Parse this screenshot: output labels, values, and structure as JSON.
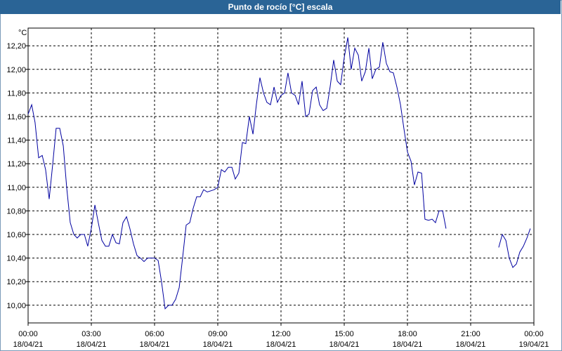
{
  "window": {
    "title": "Punto de rocío [°C] escala"
  },
  "colors": {
    "titlebar": "#2a6496",
    "line": "#0000a0",
    "grid": "#000000",
    "axis": "#000000"
  },
  "chart_data": {
    "type": "line",
    "title": "Punto de rocío [°C] escala",
    "ylabel": "°C",
    "xlabel": "",
    "grid": true,
    "ylim": [
      9.85,
      12.35
    ],
    "xlim": [
      0,
      24
    ],
    "x_unit": "hours since 18/04/21 00:00",
    "y_ticks": [
      "10,00",
      "10,20",
      "10,40",
      "10,60",
      "10,80",
      "11,00",
      "11,20",
      "11,40",
      "11,60",
      "11,80",
      "12,00",
      "12,20"
    ],
    "y_tick_values": [
      10.0,
      10.2,
      10.4,
      10.6,
      10.8,
      11.0,
      11.2,
      11.4,
      11.6,
      11.8,
      12.0,
      12.2
    ],
    "x_ticks": [
      {
        "time": "00:00",
        "date": "18/04/21"
      },
      {
        "time": "03:00",
        "date": "18/04/21"
      },
      {
        "time": "06:00",
        "date": "18/04/21"
      },
      {
        "time": "09:00",
        "date": "18/04/21"
      },
      {
        "time": "12:00",
        "date": "18/04/21"
      },
      {
        "time": "15:00",
        "date": "18/04/21"
      },
      {
        "time": "18:00",
        "date": "18/04/21"
      },
      {
        "time": "21:00",
        "date": "18/04/21"
      },
      {
        "time": "00:00",
        "date": "19/04/21"
      }
    ],
    "x_tick_values": [
      0,
      3,
      6,
      9,
      12,
      15,
      18,
      21,
      24
    ],
    "series": [
      {
        "segments": [
          [
            [
              0.0,
              11.62
            ],
            [
              0.17,
              11.7
            ],
            [
              0.33,
              11.55
            ],
            [
              0.5,
              11.25
            ],
            [
              0.67,
              11.27
            ],
            [
              0.83,
              11.15
            ],
            [
              1.0,
              10.9
            ],
            [
              1.17,
              11.2
            ],
            [
              1.33,
              11.5
            ],
            [
              1.5,
              11.5
            ],
            [
              1.67,
              11.35
            ],
            [
              1.83,
              11.0
            ],
            [
              2.0,
              10.7
            ],
            [
              2.17,
              10.6
            ],
            [
              2.33,
              10.57
            ],
            [
              2.5,
              10.6
            ],
            [
              2.67,
              10.6
            ],
            [
              2.83,
              10.5
            ],
            [
              3.0,
              10.65
            ],
            [
              3.17,
              10.85
            ],
            [
              3.33,
              10.7
            ],
            [
              3.5,
              10.55
            ],
            [
              3.67,
              10.5
            ],
            [
              3.83,
              10.5
            ],
            [
              4.0,
              10.6
            ],
            [
              4.17,
              10.53
            ],
            [
              4.33,
              10.52
            ],
            [
              4.5,
              10.7
            ],
            [
              4.67,
              10.75
            ],
            [
              4.83,
              10.65
            ],
            [
              5.0,
              10.52
            ],
            [
              5.17,
              10.42
            ],
            [
              5.33,
              10.4
            ],
            [
              5.5,
              10.37
            ],
            [
              5.67,
              10.4
            ],
            [
              5.83,
              10.4
            ],
            [
              6.0,
              10.4
            ],
            [
              6.17,
              10.38
            ],
            [
              6.33,
              10.2
            ],
            [
              6.5,
              9.97
            ],
            [
              6.67,
              10.0
            ],
            [
              6.83,
              10.0
            ],
            [
              7.0,
              10.05
            ],
            [
              7.17,
              10.15
            ],
            [
              7.33,
              10.4
            ],
            [
              7.5,
              10.68
            ],
            [
              7.67,
              10.7
            ],
            [
              7.83,
              10.82
            ],
            [
              8.0,
              10.92
            ],
            [
              8.17,
              10.92
            ],
            [
              8.33,
              10.98
            ],
            [
              8.5,
              10.96
            ],
            [
              8.67,
              10.97
            ],
            [
              8.83,
              10.98
            ],
            [
              9.0,
              11.0
            ],
            [
              9.17,
              11.15
            ],
            [
              9.33,
              11.13
            ],
            [
              9.5,
              11.17
            ],
            [
              9.67,
              11.17
            ],
            [
              9.83,
              11.07
            ],
            [
              10.0,
              11.12
            ],
            [
              10.17,
              11.38
            ],
            [
              10.33,
              11.37
            ],
            [
              10.5,
              11.6
            ],
            [
              10.67,
              11.45
            ],
            [
              10.83,
              11.7
            ],
            [
              11.0,
              11.93
            ],
            [
              11.17,
              11.8
            ],
            [
              11.33,
              11.72
            ],
            [
              11.5,
              11.7
            ],
            [
              11.67,
              11.85
            ],
            [
              11.83,
              11.72
            ],
            [
              12.0,
              11.78
            ],
            [
              12.17,
              11.8
            ],
            [
              12.33,
              11.97
            ],
            [
              12.5,
              11.8
            ],
            [
              12.67,
              11.78
            ],
            [
              12.83,
              11.7
            ],
            [
              13.0,
              11.9
            ],
            [
              13.17,
              11.6
            ],
            [
              13.33,
              11.62
            ],
            [
              13.5,
              11.82
            ],
            [
              13.67,
              11.85
            ],
            [
              13.83,
              11.7
            ],
            [
              14.0,
              11.65
            ],
            [
              14.17,
              11.67
            ],
            [
              14.33,
              11.85
            ],
            [
              14.5,
              12.08
            ],
            [
              14.67,
              11.9
            ],
            [
              14.83,
              11.87
            ],
            [
              15.0,
              12.1
            ],
            [
              15.17,
              12.27
            ],
            [
              15.33,
              12.0
            ],
            [
              15.5,
              12.18
            ],
            [
              15.67,
              12.12
            ],
            [
              15.83,
              11.9
            ],
            [
              16.0,
              11.98
            ],
            [
              16.17,
              12.18
            ],
            [
              16.33,
              11.92
            ],
            [
              16.5,
              12.0
            ],
            [
              16.67,
              12.02
            ],
            [
              16.83,
              12.23
            ],
            [
              17.0,
              12.05
            ],
            [
              17.17,
              11.98
            ],
            [
              17.33,
              11.97
            ],
            [
              17.5,
              11.85
            ],
            [
              17.67,
              11.7
            ],
            [
              17.83,
              11.5
            ],
            [
              18.0,
              11.3
            ],
            [
              18.17,
              11.22
            ],
            [
              18.33,
              11.02
            ],
            [
              18.5,
              11.13
            ],
            [
              18.67,
              11.12
            ],
            [
              18.83,
              10.73
            ],
            [
              19.0,
              10.72
            ],
            [
              19.17,
              10.73
            ],
            [
              19.33,
              10.7
            ],
            [
              19.5,
              10.8
            ],
            [
              19.67,
              10.8
            ],
            [
              19.83,
              10.65
            ]
          ],
          [
            [
              22.33,
              10.49
            ],
            [
              22.5,
              10.6
            ],
            [
              22.67,
              10.55
            ],
            [
              22.83,
              10.4
            ],
            [
              23.0,
              10.32
            ],
            [
              23.17,
              10.35
            ],
            [
              23.33,
              10.45
            ],
            [
              23.5,
              10.5
            ],
            [
              23.67,
              10.57
            ],
            [
              23.83,
              10.65
            ]
          ]
        ]
      }
    ]
  }
}
